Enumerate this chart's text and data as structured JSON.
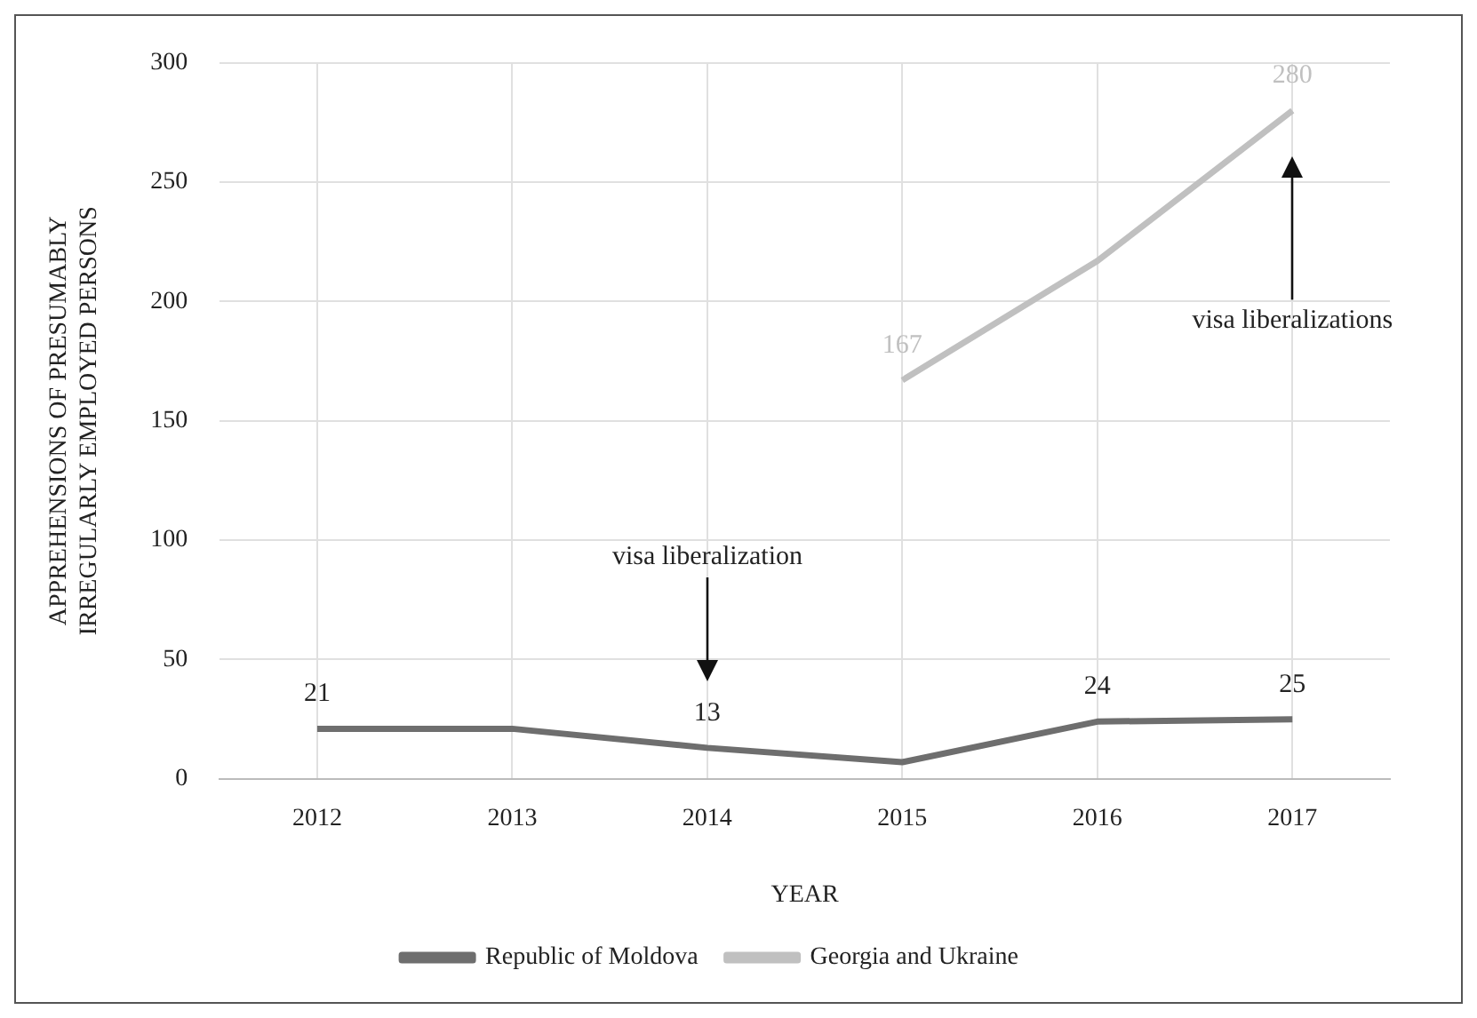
{
  "chart_data": {
    "type": "line",
    "xlabel": "YEAR",
    "ylabel": "APPREHENSIONS OF PRESUMABLY IRREGULARLY EMPLOYED PERSONS",
    "categories": [
      "2012",
      "2013",
      "2014",
      "2015",
      "2016",
      "2017"
    ],
    "series": [
      {
        "name": "Republic of Moldova",
        "color": "#6e6e6e",
        "values": [
          21,
          21,
          13,
          7,
          24,
          25
        ],
        "value_labels": [
          "21",
          null,
          "13",
          null,
          "24",
          "25"
        ]
      },
      {
        "name": "Georgia and Ukraine",
        "color": "#c0c0c0",
        "values": [
          null,
          null,
          null,
          167,
          217,
          280
        ],
        "value_labels": [
          null,
          null,
          null,
          "167",
          null,
          "280"
        ]
      }
    ],
    "ylim": [
      0,
      300
    ],
    "yticks": [
      0,
      50,
      100,
      150,
      200,
      250,
      300
    ],
    "grid": true,
    "legend": "bottom",
    "marker": "none",
    "line_style": "solid",
    "annotations": [
      "visa liberalization",
      "visa liberalizations"
    ]
  }
}
